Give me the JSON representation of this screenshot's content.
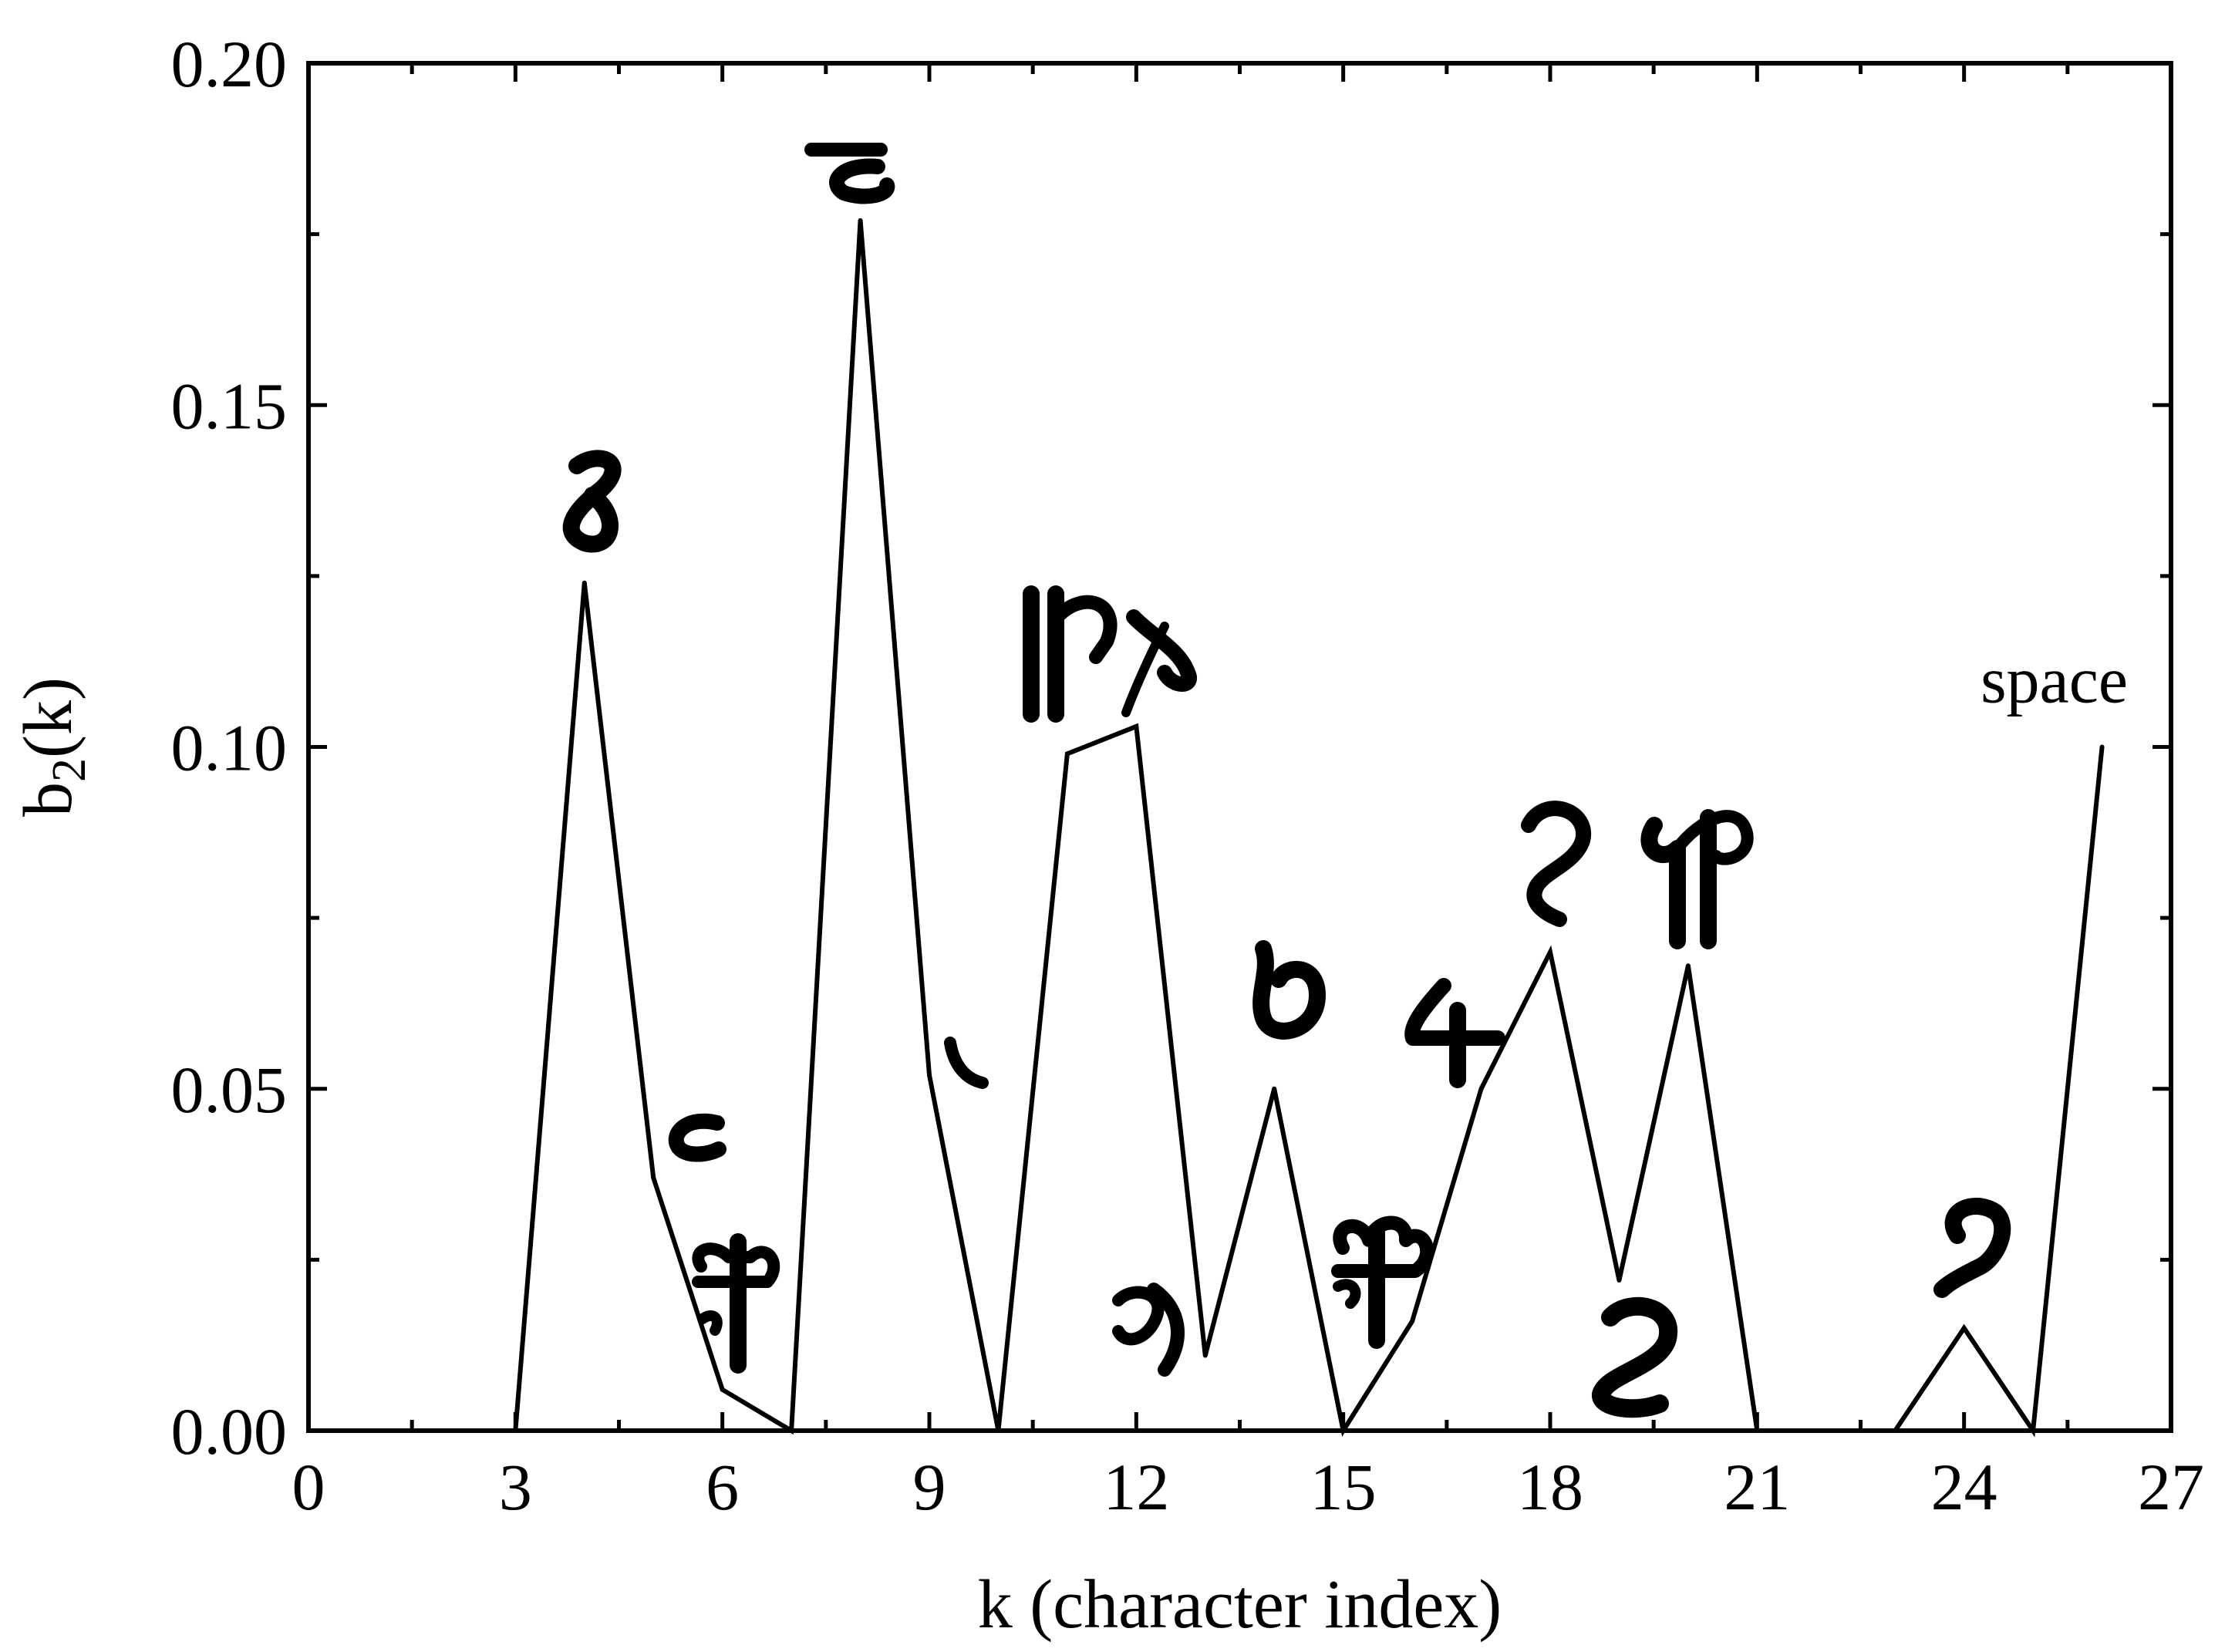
{
  "chart_data": {
    "type": "line",
    "title": "",
    "xlabel": "k (character index)",
    "ylabel_main": "b",
    "ylabel_sub": "2",
    "ylabel_tail": "(k)",
    "xlim": [
      0,
      27
    ],
    "ylim": [
      0,
      0.2
    ],
    "x_ticks": [
      0,
      3,
      6,
      9,
      12,
      15,
      18,
      21,
      24,
      27
    ],
    "x_tick_labels": [
      "0",
      "3",
      "6",
      "9",
      "12",
      "15",
      "18",
      "21",
      "24",
      "27"
    ],
    "y_ticks": [
      0,
      0.05,
      0.1,
      0.15,
      0.2
    ],
    "y_tick_labels": [
      "0.00",
      "0.05",
      "0.10",
      "0.15",
      "0.20"
    ],
    "grid": false,
    "legend": "none",
    "series": [
      {
        "x": [
          3,
          4,
          5,
          6,
          7,
          8,
          9,
          10,
          11,
          12,
          13,
          14,
          15,
          16,
          17,
          18,
          19,
          20,
          21,
          22,
          23,
          24,
          25,
          26
        ],
        "y": [
          0,
          0.124,
          0.037,
          0.006,
          0,
          0.177,
          0.052,
          0,
          0.099,
          0.103,
          0.011,
          0.05,
          0,
          0.016,
          0.05,
          0.07,
          0.022,
          0.068,
          0,
          0,
          0,
          0.015,
          0,
          0.1
        ]
      }
    ],
    "annotations": [
      {
        "type": "text",
        "text": "space",
        "x": 26,
        "y": 0.1
      }
    ]
  }
}
